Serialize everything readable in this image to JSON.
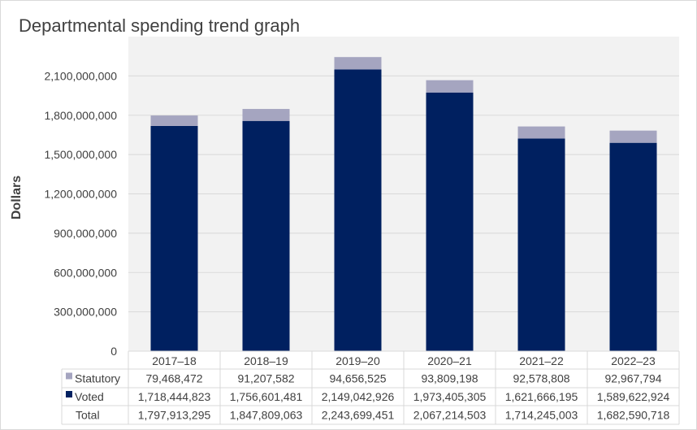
{
  "chart_data": {
    "type": "bar",
    "stacked": true,
    "title": "Departmental spending trend graph",
    "ylabel": "Dollars",
    "xlabel": "",
    "ylim": [
      0,
      2400000000
    ],
    "yticks": [
      0,
      300000000,
      600000000,
      900000000,
      1200000000,
      1500000000,
      1800000000,
      2100000000
    ],
    "ytick_labels": [
      "0",
      "300,000,000",
      "600,000,000",
      "900,000,000",
      "1,200,000,000",
      "1,500,000,000",
      "1,800,000,000",
      "2,100,000,000"
    ],
    "grid": true,
    "categories": [
      "2017–18",
      "2018–19",
      "2019–20",
      "2020–21",
      "2021–22",
      "2022–23"
    ],
    "series": [
      {
        "name": "Voted",
        "color": "#002060",
        "values": [
          1718444823,
          1756601481,
          2149042926,
          1973405305,
          1621666195,
          1589622924
        ],
        "labels": [
          "1,718,444,823",
          "1,756,601,481",
          "2,149,042,926",
          "1,973,405,305",
          "1,621,666,195",
          "1,589,622,924"
        ]
      },
      {
        "name": "Statutory",
        "color": "#a5a5c0",
        "values": [
          79468472,
          91207582,
          94656525,
          93809198,
          92578808,
          92967794
        ],
        "labels": [
          "79,468,472",
          "91,207,582",
          "94,656,525",
          "93,809,198",
          "92,578,808",
          "92,967,794"
        ]
      }
    ],
    "total": {
      "name": "Total",
      "labels": [
        "1,797,913,295",
        "1,847,809,063",
        "2,243,699,451",
        "2,067,214,503",
        "1,714,245,003",
        "1,682,590,718"
      ]
    },
    "legend": "data-table"
  }
}
